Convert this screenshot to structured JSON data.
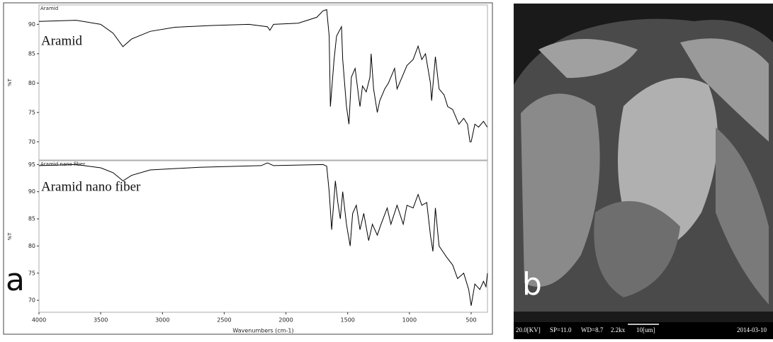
{
  "chart_data": [
    {
      "type": "line",
      "label": "Aramid",
      "annotation": "Aramid",
      "y_label": "%T",
      "xlim": [
        4000,
        368
      ],
      "ylim": [
        66.9,
        93.3
      ],
      "yticks": [
        70,
        75,
        80,
        85,
        90
      ],
      "color": "#000000",
      "x": [
        4000,
        3700,
        3500,
        3400,
        3320,
        3250,
        3100,
        2900,
        2600,
        2300,
        2150,
        2130,
        2100,
        1900,
        1750,
        1700,
        1670,
        1650,
        1640,
        1610,
        1590,
        1550,
        1540,
        1510,
        1490,
        1470,
        1440,
        1410,
        1400,
        1380,
        1350,
        1320,
        1310,
        1290,
        1260,
        1240,
        1200,
        1170,
        1120,
        1100,
        1020,
        970,
        930,
        900,
        870,
        830,
        820,
        790,
        760,
        720,
        690,
        650,
        600,
        560,
        530,
        510,
        500,
        470,
        440,
        400,
        370
      ],
      "values": [
        90.5,
        90.7,
        90.0,
        88.5,
        86.2,
        87.5,
        88.8,
        89.5,
        89.8,
        90.0,
        89.6,
        89.0,
        90.0,
        90.2,
        91.2,
        92.3,
        92.5,
        88,
        76,
        84,
        88,
        89.6,
        84,
        76,
        73,
        81,
        82.5,
        77.5,
        76,
        79.5,
        78.5,
        81,
        85,
        79,
        75,
        77,
        79,
        80,
        82.5,
        79,
        83,
        84,
        86.3,
        84,
        85,
        80,
        77,
        84.5,
        79,
        78,
        76,
        75.5,
        73,
        74,
        73,
        70,
        70,
        73,
        72.5,
        73.5,
        72.5
      ]
    },
    {
      "type": "line",
      "label": "Aramid nano fiber",
      "annotation": "Aramid nano fiber",
      "y_label": "%T",
      "x_label": "Wavenumbers (cm-1)",
      "xlim": [
        4000,
        368
      ],
      "ylim": [
        67.8,
        95.7
      ],
      "yticks": [
        70,
        75,
        80,
        85,
        90,
        95
      ],
      "xticks": [
        4000,
        3500,
        3000,
        2500,
        2000,
        1500,
        1000,
        500
      ],
      "color": "#000000",
      "x": [
        4000,
        3700,
        3500,
        3400,
        3320,
        3250,
        3100,
        2700,
        2200,
        2150,
        2100,
        1700,
        1670,
        1650,
        1630,
        1600,
        1580,
        1560,
        1540,
        1510,
        1480,
        1460,
        1430,
        1400,
        1370,
        1330,
        1300,
        1260,
        1230,
        1180,
        1150,
        1100,
        1050,
        1020,
        970,
        930,
        900,
        860,
        830,
        810,
        790,
        760,
        730,
        700,
        650,
        610,
        560,
        520,
        500,
        470,
        430,
        400,
        380,
        368
      ],
      "values": [
        94.8,
        95,
        94.4,
        93.5,
        92,
        93,
        94,
        94.5,
        94.8,
        95.3,
        94.8,
        95,
        94.7,
        90,
        83,
        92,
        88,
        85,
        90,
        84,
        80,
        86,
        87.5,
        83,
        86,
        81,
        84,
        82,
        84,
        87,
        84,
        87.5,
        84,
        87.5,
        87,
        89.5,
        87.5,
        88,
        82,
        79,
        87,
        80,
        79,
        78,
        76.5,
        74,
        75,
        72,
        69,
        73,
        72,
        73.5,
        72.5,
        75
      ]
    }
  ],
  "figure": {
    "panel_a": "a",
    "panel_b": "b",
    "sem_info": [
      "20.0[KV]",
      "SP=11.0",
      "WD=8.7",
      "2.2kx",
      "10[um]",
      "2014-03-10"
    ]
  }
}
